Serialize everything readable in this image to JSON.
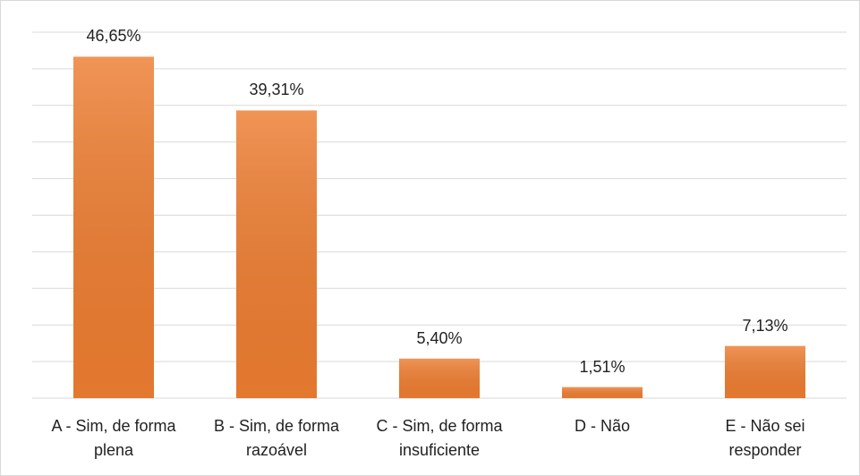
{
  "chart_data": {
    "type": "bar",
    "categories": [
      "A - Sim, de forma plena",
      "B - Sim, de forma razoável",
      "C - Sim, de forma insuficiente",
      "D - Não",
      "E - Não sei responder"
    ],
    "values": [
      46.65,
      39.31,
      5.4,
      1.51,
      7.13
    ],
    "value_labels": [
      "46,65%",
      "39,31%",
      "5,40%",
      "1,51%",
      "7,13%"
    ],
    "color": "#ed7d31",
    "ylim": [
      0,
      50
    ],
    "yticks": [
      0,
      5,
      10,
      15,
      20,
      25,
      30,
      35,
      40,
      45,
      50
    ],
    "grid": true
  }
}
